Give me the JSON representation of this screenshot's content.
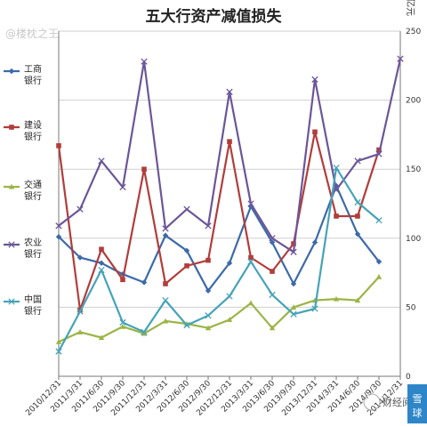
{
  "chart_data": {
    "type": "line",
    "title": "五大行资产减值损失",
    "y_unit": "亿元",
    "ylim": [
      0,
      250
    ],
    "yticks": [
      0,
      50,
      100,
      150,
      200,
      250
    ],
    "grid": "horizontal",
    "legend_placement": "left",
    "categories": [
      "2010/12/31",
      "2011/3/31",
      "2011/6/30",
      "2011/9/30",
      "2011/12/31",
      "2012/3/31",
      "2012/6/30",
      "2012/9/30",
      "2012/12/31",
      "2013/3/31",
      "2013/6/30",
      "2013/9/30",
      "2013/12/31",
      "2014/3/31",
      "2014/6/30",
      "2014/9/30",
      "2014/12/31"
    ],
    "series": [
      {
        "name": "工商银行",
        "color": "#3d6aa8",
        "marker": "diamond",
        "values": [
          101,
          86,
          82,
          74,
          68,
          102,
          91,
          62,
          82,
          123,
          97,
          67,
          97,
          138,
          103,
          83,
          null
        ]
      },
      {
        "name": "建设银行",
        "color": "#b13d3b",
        "marker": "square",
        "values": [
          167,
          48,
          92,
          70,
          150,
          67,
          80,
          84,
          170,
          86,
          76,
          96,
          177,
          116,
          116,
          164,
          null
        ]
      },
      {
        "name": "交通银行",
        "color": "#9bb546",
        "marker": "triangle",
        "values": [
          25,
          32,
          28,
          36,
          31,
          40,
          38,
          35,
          41,
          53,
          35,
          50,
          55,
          56,
          55,
          72,
          null
        ]
      },
      {
        "name": "农业银行",
        "color": "#6c5698",
        "marker": "x",
        "values": [
          109,
          121,
          156,
          137,
          228,
          107,
          121,
          109,
          206,
          125,
          100,
          90,
          215,
          135,
          156,
          161,
          230
        ]
      },
      {
        "name": "中国银行",
        "color": "#46a3b8",
        "marker": "x",
        "values": [
          18,
          47,
          77,
          39,
          32,
          55,
          37,
          44,
          58,
          83,
          59,
          45,
          49,
          151,
          126,
          113,
          null
        ]
      }
    ]
  },
  "watermark": {
    "top_left": "@楼枕之王",
    "bottom_right": "财经阅读",
    "badge": "雪球"
  }
}
